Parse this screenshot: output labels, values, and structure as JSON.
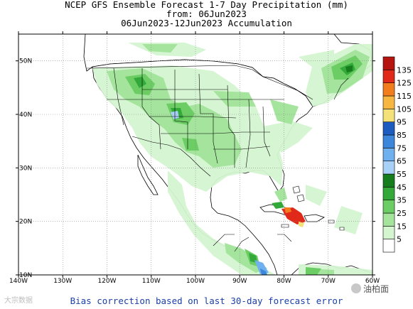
{
  "header": {
    "line1": "NCEP GFS Ensemble Forecast 1-7 Day Precipitation (mm)",
    "line2": "from: 06Jun2023",
    "line3": "06Jun2023-12Jun2023 Accumulation"
  },
  "axes": {
    "lat_labels": [
      "50N",
      "40N",
      "30N",
      "20N",
      "10N"
    ],
    "lon_labels": [
      "140W",
      "130W",
      "120W",
      "110W",
      "100W",
      "90W",
      "80W",
      "70W",
      "60W"
    ],
    "lat_values": [
      50,
      40,
      30,
      20,
      10
    ],
    "lon_values": [
      -140,
      -130,
      -120,
      -110,
      -100,
      -90,
      -80,
      -70,
      -60
    ],
    "lat_range": [
      10,
      55
    ],
    "lon_range": [
      -140,
      -60
    ]
  },
  "colorbar": {
    "labels": [
      "5",
      "15",
      "25",
      "35",
      "45",
      "55",
      "65",
      "75",
      "85",
      "95",
      "105",
      "115",
      "125",
      "135"
    ],
    "colors": [
      "#ffffff",
      "#d4f5d0",
      "#a4e49c",
      "#6ccd65",
      "#33a93a",
      "#157d1c",
      "#a9d1f7",
      "#6fb0ee",
      "#3c86dc",
      "#1c5bbf",
      "#f4e17a",
      "#f7b640",
      "#f27d1c",
      "#e1291a",
      "#b5140f"
    ]
  },
  "colors": {
    "ocean": "#ffffff",
    "land_dry": "#ffffff",
    "coast": "#000000",
    "border": "#000000"
  },
  "footer": {
    "text": "Bias correction based on last 30-day forecast error"
  },
  "watermarks": {
    "left": "大宗数据",
    "right": "油柏面"
  }
}
